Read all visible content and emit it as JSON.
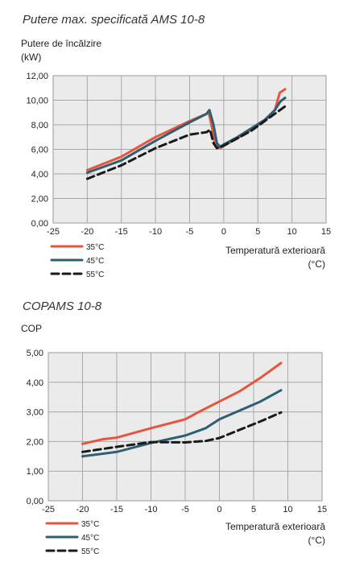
{
  "chart_data": [
    {
      "type": "line",
      "title": "Putere max. specificată AMS 10-8",
      "ylabel_line1": "Putere de încălzire",
      "ylabel_line2": "(kW)",
      "xlabel_line1": "Temperatură exterioară",
      "xlabel_line2": "(°C)",
      "xlim": [
        -25,
        15
      ],
      "ylim": [
        0,
        12
      ],
      "xticks": [
        -25,
        -20,
        -15,
        -10,
        -5,
        0,
        5,
        10,
        15
      ],
      "xtick_labels": [
        "-25",
        "-20",
        "-15",
        "-10",
        "-5",
        "0",
        "5",
        "10",
        "15"
      ],
      "yticks": [
        0,
        2,
        4,
        6,
        8,
        10,
        12
      ],
      "ytick_labels": [
        "0,00",
        "2,00",
        "4,00",
        "6,00",
        "8,00",
        "10,00",
        "12,00"
      ],
      "grid": true,
      "legend_position": "bottom-left",
      "series": [
        {
          "name": "35°C",
          "color": "#e8553f",
          "dash": "solid",
          "x": [
            -20,
            -15,
            -10,
            -5,
            -2.5,
            -2.2,
            -1.8,
            -1.2,
            -0.5,
            0,
            2,
            4,
            6,
            7.5,
            8.2,
            9
          ],
          "y": [
            4.3,
            5.4,
            7.0,
            8.3,
            8.9,
            9.0,
            8.0,
            6.4,
            6.1,
            6.3,
            6.9,
            7.6,
            8.3,
            9.2,
            10.6,
            10.9
          ]
        },
        {
          "name": "45°C",
          "color": "#2f5f73",
          "dash": "solid",
          "x": [
            -20,
            -15,
            -10,
            -5,
            -2.5,
            -2.1,
            -1.5,
            -1.0,
            -0.5,
            0,
            2,
            4,
            6,
            7.5,
            8.3,
            9
          ],
          "y": [
            4.1,
            5.1,
            6.7,
            8.2,
            8.9,
            9.2,
            8.0,
            6.5,
            6.2,
            6.4,
            7.0,
            7.7,
            8.4,
            9.2,
            9.9,
            10.2
          ]
        },
        {
          "name": "55°C",
          "color": "#1a1a1a",
          "dash": "dashed",
          "x": [
            -20,
            -15,
            -10,
            -5,
            -2.5,
            -2.0,
            -1.5,
            -1.0,
            0,
            2,
            4,
            6,
            8,
            9
          ],
          "y": [
            3.6,
            4.7,
            6.1,
            7.2,
            7.4,
            7.6,
            6.5,
            6.1,
            6.3,
            6.9,
            7.5,
            8.3,
            9.1,
            9.5
          ]
        }
      ]
    },
    {
      "type": "line",
      "title": "COPAMS 10-8",
      "ylabel_line1": "COP",
      "ylabel_line2": "",
      "xlabel_line1": "Temperatură exterioară",
      "xlabel_line2": "(°C)",
      "xlim": [
        -25,
        15
      ],
      "ylim": [
        0,
        5
      ],
      "xticks": [
        -25,
        -20,
        -15,
        -10,
        -5,
        0,
        5,
        10,
        15
      ],
      "xtick_labels": [
        "-25",
        "-20",
        "-15",
        "-10",
        "-5",
        "0",
        "5",
        "10",
        "15"
      ],
      "yticks": [
        0,
        1,
        2,
        3,
        4,
        5
      ],
      "ytick_labels": [
        "0,00",
        "1,00",
        "2,00",
        "3,00",
        "4,00",
        "5,00"
      ],
      "grid": true,
      "legend_position": "bottom-left",
      "series": [
        {
          "name": "35°C",
          "color": "#e8553f",
          "dash": "solid",
          "x": [
            -20,
            -17,
            -15,
            -10,
            -5,
            -3,
            0,
            3,
            6,
            9
          ],
          "y": [
            1.92,
            2.08,
            2.13,
            2.45,
            2.75,
            3.0,
            3.35,
            3.7,
            4.15,
            4.65
          ]
        },
        {
          "name": "45°C",
          "color": "#2f5f73",
          "dash": "solid",
          "x": [
            -20,
            -15,
            -10,
            -5,
            -2,
            0,
            3,
            6,
            9
          ],
          "y": [
            1.5,
            1.65,
            1.95,
            2.2,
            2.45,
            2.75,
            3.05,
            3.35,
            3.73
          ]
        },
        {
          "name": "55°C",
          "color": "#1a1a1a",
          "dash": "dashed",
          "x": [
            -20,
            -15,
            -10,
            -5,
            -2,
            0,
            3,
            6,
            9
          ],
          "y": [
            1.65,
            1.82,
            1.98,
            1.97,
            2.02,
            2.12,
            2.4,
            2.68,
            2.98
          ]
        }
      ]
    }
  ]
}
